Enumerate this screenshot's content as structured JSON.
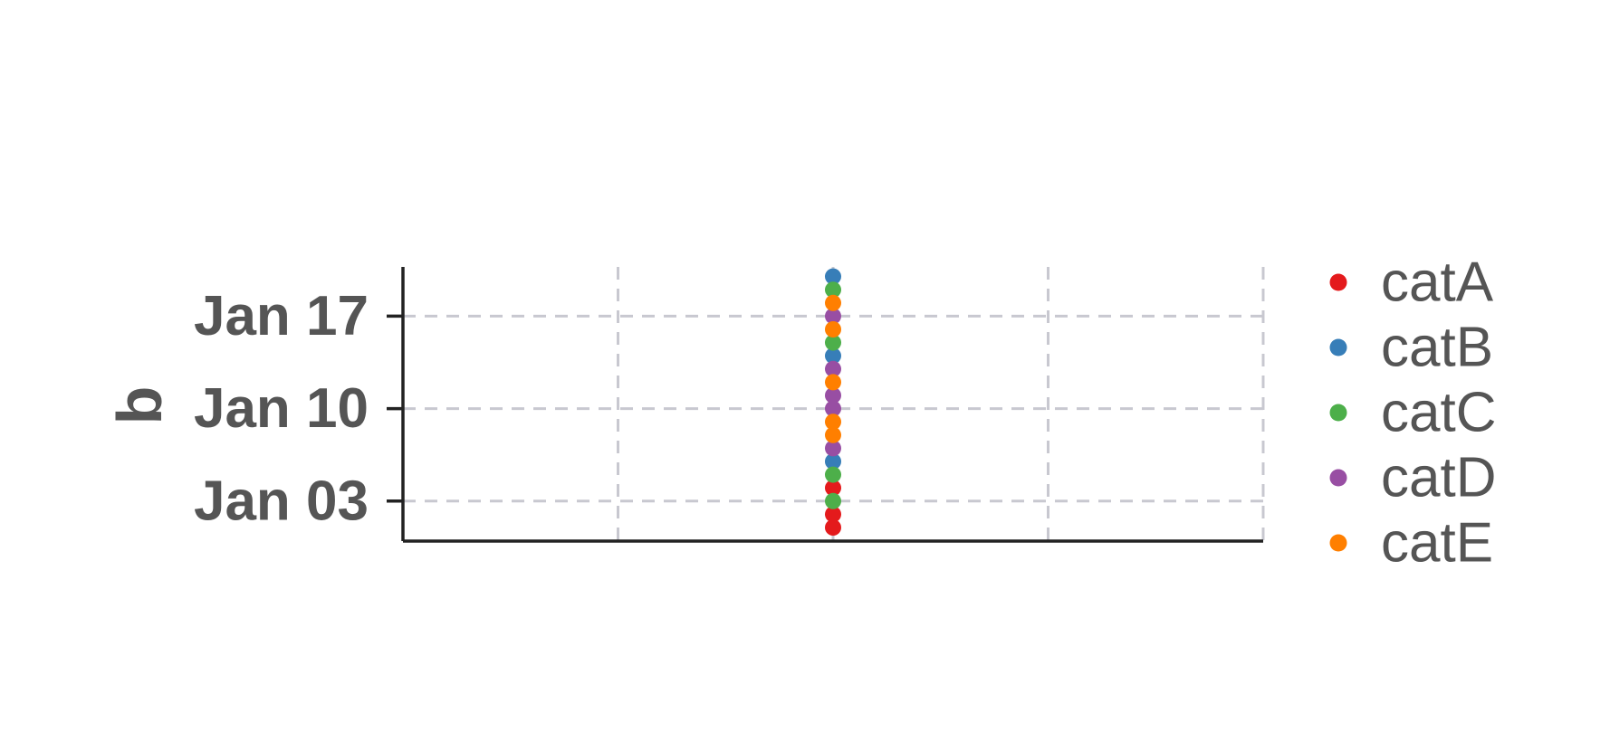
{
  "chart_data": {
    "type": "scatter",
    "title": "",
    "xlabel": "",
    "ylabel": "b",
    "grid": true,
    "x_axis_ticks_shown": false,
    "legend_placement": "right",
    "y_ticks": [
      {
        "value": "2018-01-03",
        "label": "Jan 03"
      },
      {
        "value": "2018-01-10",
        "label": "Jan 10"
      },
      {
        "value": "2018-01-17",
        "label": "Jan 17"
      }
    ],
    "ylim": [
      "2018-12-31",
      "2018-01-20"
    ],
    "series": [
      {
        "name": "catA",
        "color": "#e41a1c",
        "x": [
          0,
          0,
          0
        ],
        "y": [
          "2018-01-01",
          "2018-01-02",
          "2018-01-04"
        ]
      },
      {
        "name": "catB",
        "color": "#377eb8",
        "x": [
          0,
          0,
          0
        ],
        "y": [
          "2018-01-06",
          "2018-01-14",
          "2018-01-20"
        ]
      },
      {
        "name": "catC",
        "color": "#4daf4a",
        "x": [
          0,
          0,
          0,
          0
        ],
        "y": [
          "2018-01-03",
          "2018-01-05",
          "2018-01-15",
          "2018-01-19"
        ]
      },
      {
        "name": "catD",
        "color": "#984ea3",
        "x": [
          0,
          0,
          0,
          0,
          0
        ],
        "y": [
          "2018-01-07",
          "2018-01-10",
          "2018-01-11",
          "2018-01-13",
          "2018-01-17"
        ]
      },
      {
        "name": "catE",
        "color": "#ff7f00",
        "x": [
          0,
          0,
          0,
          0,
          0
        ],
        "y": [
          "2018-01-08",
          "2018-01-09",
          "2018-01-12",
          "2018-01-16",
          "2018-01-18"
        ]
      }
    ]
  }
}
